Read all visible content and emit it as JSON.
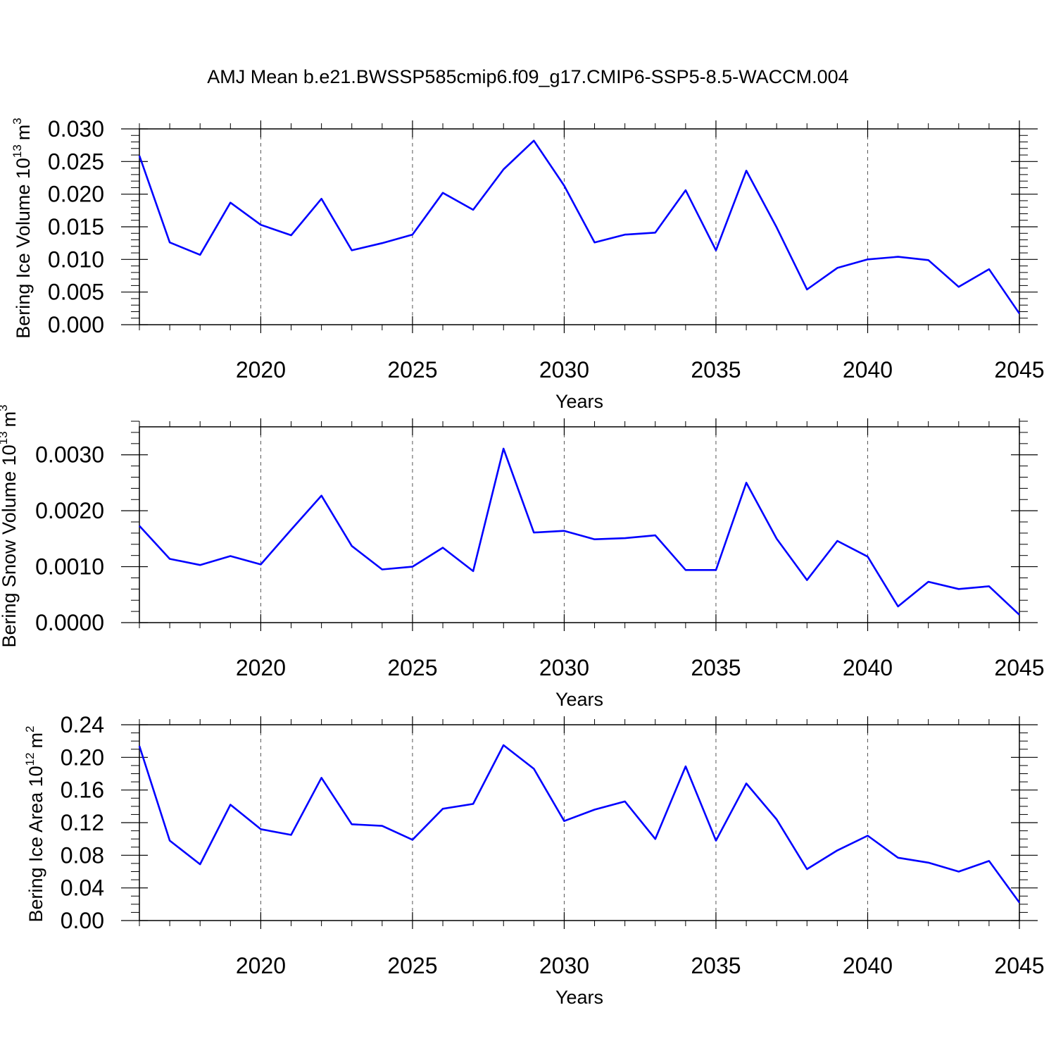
{
  "title": "AMJ Mean b.e21.BWSSP585cmip6.f09_g17.CMIP6-SSP5-8.5-WACCM.004",
  "colors": {
    "line": "#0000ff",
    "axis": "#000000",
    "grid": "#555555"
  },
  "chart_data": [
    {
      "type": "line",
      "ylabel_main": "Bering Ice Volume 10",
      "ylabel_exp": "13",
      "ylabel_unit": "m",
      "ylabel_unit_exp": "3",
      "xlabel": "Years",
      "xlim": [
        2016,
        2045
      ],
      "ylim": [
        0.0,
        0.03
      ],
      "yticks": [
        0.0,
        0.005,
        0.01,
        0.015,
        0.02,
        0.025,
        0.03
      ],
      "ytick_labels": [
        "0.000",
        "0.005",
        "0.010",
        "0.015",
        "0.020",
        "0.025",
        "0.030"
      ],
      "xticks": [
        2020,
        2025,
        2030,
        2035,
        2040,
        2045
      ],
      "xtick_labels": [
        "2020",
        "2025",
        "2030",
        "2035",
        "2040",
        "2045"
      ],
      "grid": "dashed vertical at major x ticks",
      "series": [
        {
          "name": "Bering Ice Volume",
          "x": [
            2016,
            2017,
            2018,
            2019,
            2020,
            2021,
            2022,
            2023,
            2024,
            2025,
            2026,
            2027,
            2028,
            2029,
            2030,
            2031,
            2032,
            2033,
            2034,
            2035,
            2036,
            2037,
            2038,
            2039,
            2040,
            2041,
            2042,
            2043,
            2044,
            2045
          ],
          "values": [
            0.0259,
            0.0126,
            0.0107,
            0.0187,
            0.0153,
            0.0137,
            0.0193,
            0.0114,
            0.0125,
            0.0138,
            0.0202,
            0.0176,
            0.0238,
            0.0282,
            0.0213,
            0.0126,
            0.0138,
            0.0141,
            0.0206,
            0.0114,
            0.0236,
            0.0149,
            0.0054,
            0.0087,
            0.01,
            0.0104,
            0.0099,
            0.0058,
            0.0085,
            0.0017
          ]
        }
      ]
    },
    {
      "type": "line",
      "ylabel_main": "Bering Snow Volume 10",
      "ylabel_exp": "13",
      "ylabel_unit": "m",
      "ylabel_unit_exp": "3",
      "xlabel": "Years",
      "xlim": [
        2016,
        2045
      ],
      "ylim": [
        0.0,
        0.0035
      ],
      "yticks": [
        0.0,
        0.001,
        0.002,
        0.003
      ],
      "ytick_labels": [
        "0.0000",
        "0.0010",
        "0.0020",
        "0.0030"
      ],
      "xticks": [
        2020,
        2025,
        2030,
        2035,
        2040,
        2045
      ],
      "xtick_labels": [
        "2020",
        "2025",
        "2030",
        "2035",
        "2040",
        "2045"
      ],
      "grid": "dashed vertical at major x ticks",
      "series": [
        {
          "name": "Bering Snow Volume",
          "x": [
            2016,
            2017,
            2018,
            2019,
            2020,
            2021,
            2022,
            2023,
            2024,
            2025,
            2026,
            2027,
            2028,
            2029,
            2030,
            2031,
            2032,
            2033,
            2034,
            2035,
            2036,
            2037,
            2038,
            2039,
            2040,
            2041,
            2042,
            2043,
            2044,
            2045
          ],
          "values": [
            0.00173,
            0.00114,
            0.00103,
            0.00119,
            0.00104,
            0.00166,
            0.00227,
            0.00137,
            0.00095,
            0.001,
            0.00134,
            0.00092,
            0.00311,
            0.00161,
            0.00164,
            0.00149,
            0.00151,
            0.00156,
            0.00094,
            0.00094,
            0.0025,
            0.0015,
            0.00076,
            0.00146,
            0.00118,
            0.00029,
            0.00073,
            0.0006,
            0.00065,
            0.00014
          ]
        }
      ]
    },
    {
      "type": "line",
      "ylabel_main": "Bering Ice Area 10",
      "ylabel_exp": "12",
      "ylabel_unit": "m",
      "ylabel_unit_exp": "2",
      "xlabel": "Years",
      "xlim": [
        2016,
        2045
      ],
      "ylim": [
        0.0,
        0.24
      ],
      "yticks": [
        0.0,
        0.04,
        0.08,
        0.12,
        0.16,
        0.2,
        0.24
      ],
      "ytick_labels": [
        "0.00",
        "0.04",
        "0.08",
        "0.12",
        "0.16",
        "0.20",
        "0.24"
      ],
      "xticks": [
        2020,
        2025,
        2030,
        2035,
        2040,
        2045
      ],
      "xtick_labels": [
        "2020",
        "2025",
        "2030",
        "2035",
        "2040",
        "2045"
      ],
      "grid": "dashed vertical at major x ticks",
      "series": [
        {
          "name": "Bering Ice Area",
          "x": [
            2016,
            2017,
            2018,
            2019,
            2020,
            2021,
            2022,
            2023,
            2024,
            2025,
            2026,
            2027,
            2028,
            2029,
            2030,
            2031,
            2032,
            2033,
            2034,
            2035,
            2036,
            2037,
            2038,
            2039,
            2040,
            2041,
            2042,
            2043,
            2044,
            2045
          ],
          "values": [
            0.214,
            0.098,
            0.069,
            0.142,
            0.112,
            0.105,
            0.175,
            0.118,
            0.116,
            0.099,
            0.137,
            0.143,
            0.215,
            0.186,
            0.122,
            0.136,
            0.146,
            0.1,
            0.189,
            0.098,
            0.168,
            0.124,
            0.063,
            0.086,
            0.104,
            0.077,
            0.071,
            0.06,
            0.073,
            0.022
          ]
        }
      ]
    }
  ]
}
